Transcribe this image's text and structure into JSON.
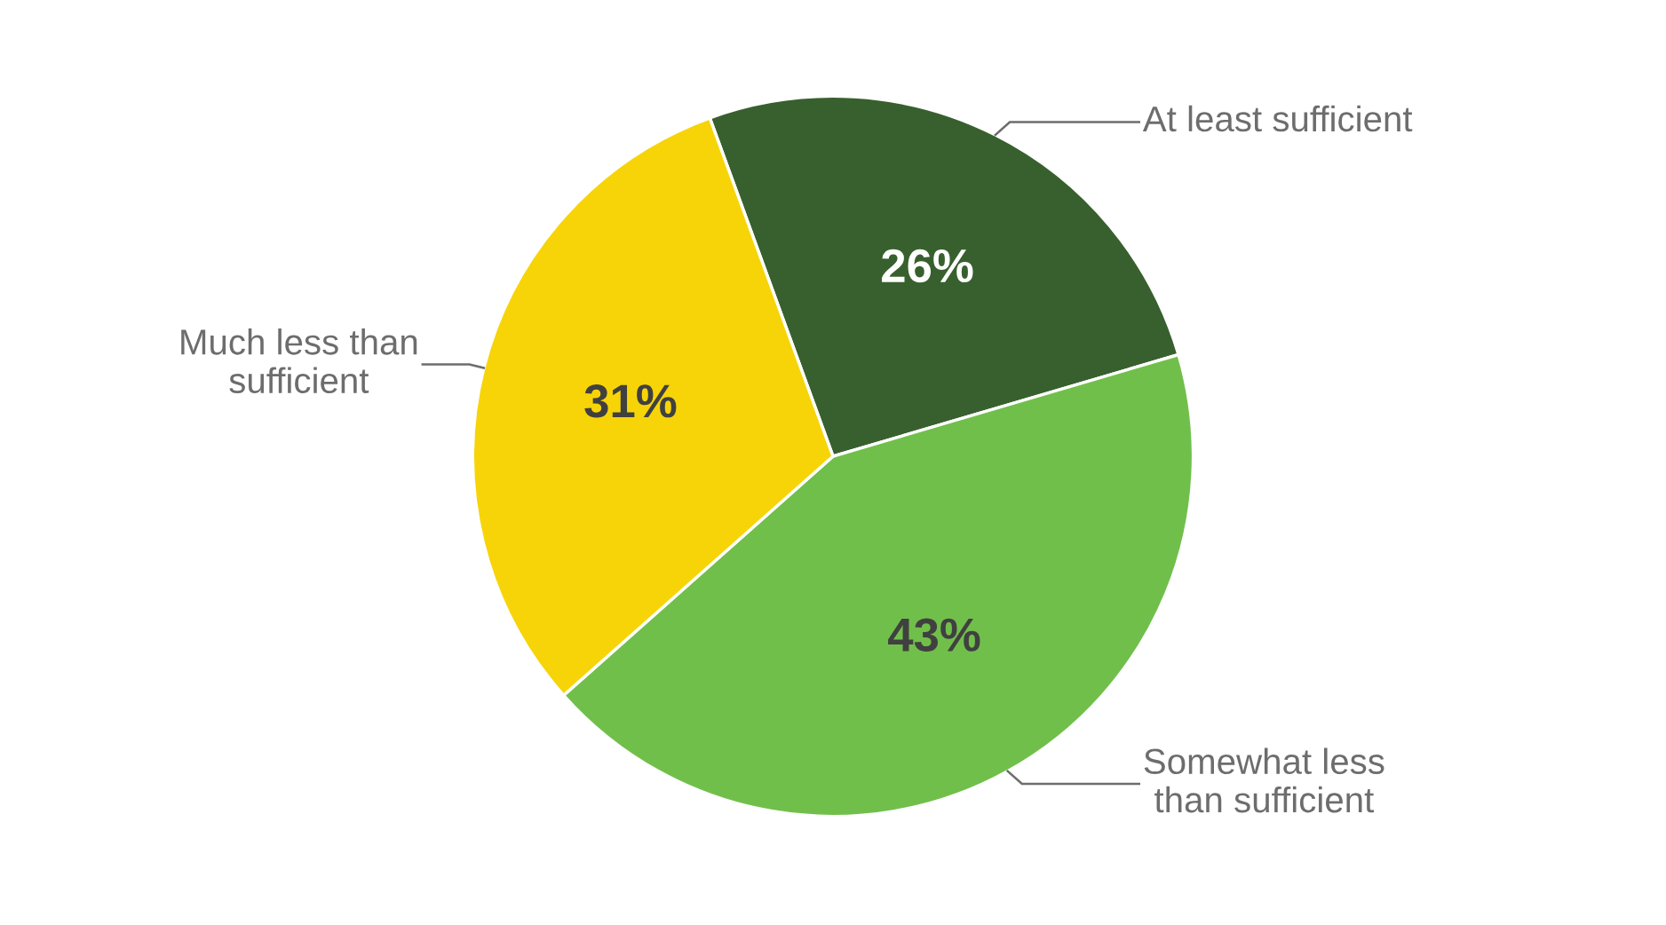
{
  "chart_data": {
    "type": "pie",
    "categories": [
      "At least sufficient",
      "Somewhat less\nthan sufficient",
      "Much less than\nsufficient"
    ],
    "values": [
      26,
      43,
      31
    ],
    "colors": [
      "#38602e",
      "#71bf4b",
      "#f7d408"
    ],
    "value_labels": [
      "26%",
      "43%",
      "31%"
    ],
    "legend": false
  }
}
